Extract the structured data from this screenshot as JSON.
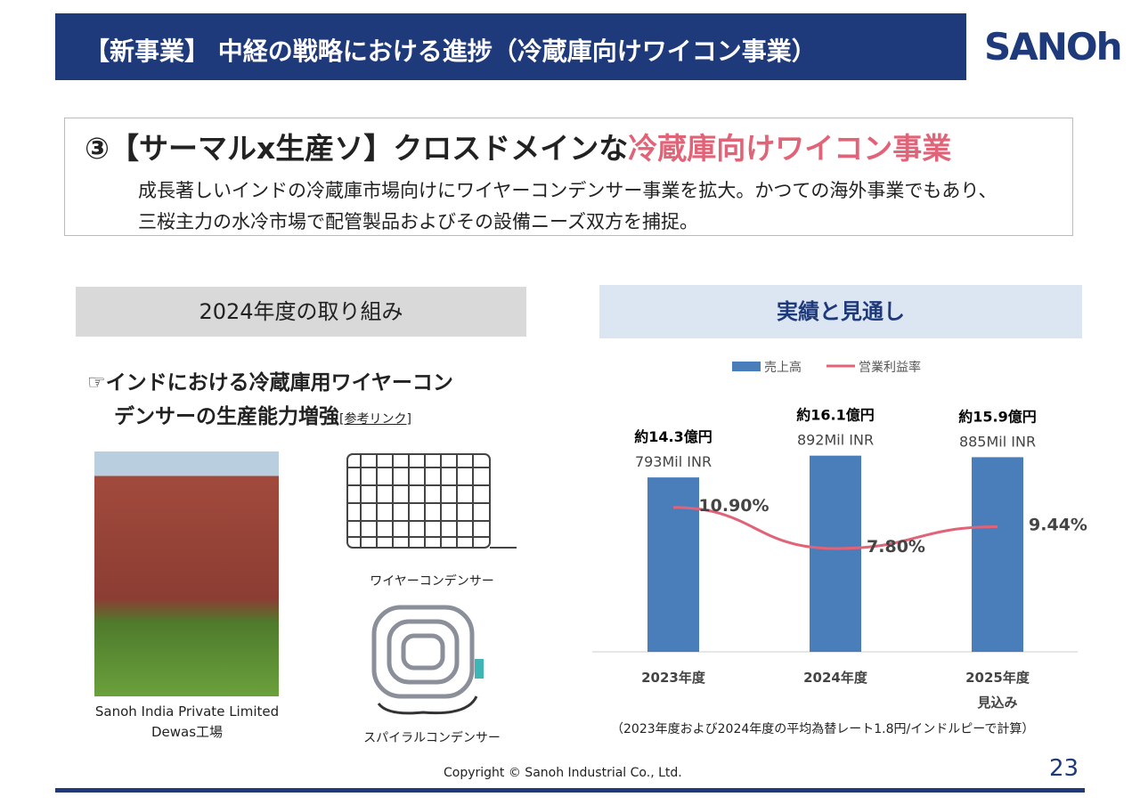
{
  "header": {
    "title": "【新事業】 中経の戦略における進捗（冷蔵庫向けワイコン事業）",
    "logo": "SANOh"
  },
  "summary": {
    "heading_lead": "③【サーマルx生産ソ】クロスドメインな",
    "heading_highlight": "冷蔵庫向けワイコン事業",
    "lines": [
      "成長著しいインドの冷蔵庫市場向けにワイヤーコンデンサー事業を拡大。かつての海外事業でもあり、",
      "三桜主力の水冷市場で配管製品およびその設備ニーズ双方を捕捉。"
    ]
  },
  "left": {
    "heading": "2024年度の取り組み",
    "bullet_lines": [
      "☞インドにおける冷蔵庫用ワイヤーコン",
      "デンサーの生産能力増強"
    ],
    "link": "[参考リンク]",
    "photo_caption": [
      "Sanoh India Private Limited",
      "Dewas工場"
    ],
    "image_captions": [
      "ワイヤーコンデンサー",
      "スパイラルコンデンサー"
    ]
  },
  "right": {
    "heading": "実績と見通し"
  },
  "chart_data": {
    "type": "bar",
    "categories": [
      "2023年度",
      "2024年度",
      "2025年度"
    ],
    "category_note": "見込み",
    "series": [
      {
        "name": "売上高",
        "color": "#4a7ebb",
        "values": [
          793,
          892,
          885
        ],
        "value_labels": [
          "793Mil INR",
          "892Mil INR",
          "885Mil INR"
        ],
        "yen_labels": [
          "約14.3億円",
          "約16.1億円",
          "約15.9億円"
        ]
      },
      {
        "name": "営業利益率",
        "type": "line",
        "axis": "y2",
        "color": "#e06377",
        "values": [
          10.9,
          7.8,
          9.44
        ],
        "value_labels": [
          "10.90%",
          "7.80%",
          "9.44%"
        ]
      }
    ],
    "ylim": [
      0,
      1000
    ],
    "y2lim": [
      0,
      16.6
    ],
    "note": "（2023年度および2024年度の平均為替レート1.8円/インドルピーで計算）"
  },
  "footer": {
    "copyright": "Copyright © Sanoh Industrial Co., Ltd.",
    "page": "23"
  }
}
